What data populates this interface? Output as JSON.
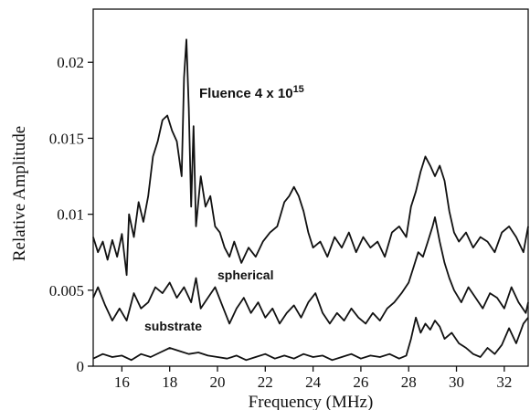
{
  "chart_data": {
    "type": "line",
    "title": "",
    "xlabel": "Frequency (MHz)",
    "ylabel": "Relative Amplitude",
    "xlim": [
      14.8,
      33.0
    ],
    "ylim": [
      0.0,
      0.0235
    ],
    "x_ticks": [
      16,
      18,
      20,
      22,
      24,
      26,
      28,
      30,
      32
    ],
    "x_tick_labels": [
      "16",
      "18",
      "20",
      "22",
      "24",
      "26",
      "28",
      "30",
      "32"
    ],
    "y_ticks": [
      0.0,
      0.005,
      0.01,
      0.015,
      0.02
    ],
    "y_tick_labels": [
      "0",
      "0.005",
      "0.01",
      "0.015",
      "0.02"
    ],
    "grid": false,
    "annotations": {
      "fluence_prefix": "Fluence 4 x 10",
      "fluence_exponent": "15",
      "spherical": "spherical",
      "substrate": "substrate"
    },
    "series": [
      {
        "color": "#111111",
        "x": [
          14.8,
          15.0,
          15.2,
          15.4,
          15.6,
          15.8,
          16.0,
          16.2,
          16.3,
          16.5,
          16.7,
          16.9,
          17.1,
          17.3,
          17.5,
          17.7,
          17.9,
          18.1,
          18.3,
          18.5,
          18.6,
          18.7,
          18.8,
          18.9,
          19.0,
          19.1,
          19.3,
          19.5,
          19.7,
          19.9,
          20.1,
          20.3,
          20.5,
          20.7,
          21.0,
          21.3,
          21.6,
          21.9,
          22.2,
          22.5,
          22.8,
          23.0,
          23.2,
          23.4,
          23.6,
          23.8,
          24.0,
          24.3,
          24.6,
          24.9,
          25.2,
          25.5,
          25.8,
          26.1,
          26.4,
          26.7,
          27.0,
          27.3,
          27.6,
          27.9,
          28.1,
          28.3,
          28.5,
          28.7,
          28.9,
          29.1,
          29.3,
          29.5,
          29.7,
          29.9,
          30.1,
          30.4,
          30.7,
          31.0,
          31.3,
          31.6,
          31.9,
          32.2,
          32.5,
          32.8,
          33.0
        ],
        "values": [
          0.0085,
          0.0075,
          0.0082,
          0.007,
          0.0083,
          0.0072,
          0.0087,
          0.006,
          0.01,
          0.0085,
          0.0108,
          0.0095,
          0.0112,
          0.0138,
          0.0148,
          0.0162,
          0.0165,
          0.0155,
          0.0148,
          0.0125,
          0.019,
          0.0215,
          0.017,
          0.0105,
          0.0158,
          0.0092,
          0.0125,
          0.0105,
          0.0112,
          0.0092,
          0.0088,
          0.0078,
          0.0072,
          0.0082,
          0.0068,
          0.0078,
          0.0072,
          0.0082,
          0.0088,
          0.0092,
          0.0108,
          0.0112,
          0.0118,
          0.0112,
          0.0102,
          0.0088,
          0.0078,
          0.0082,
          0.0072,
          0.0085,
          0.0078,
          0.0088,
          0.0075,
          0.0085,
          0.0078,
          0.0082,
          0.0072,
          0.0088,
          0.0092,
          0.0085,
          0.0105,
          0.0115,
          0.0128,
          0.0138,
          0.0132,
          0.0125,
          0.0132,
          0.0122,
          0.0102,
          0.0088,
          0.0082,
          0.0088,
          0.0078,
          0.0085,
          0.0082,
          0.0075,
          0.0088,
          0.0092,
          0.0085,
          0.0075,
          0.0092
        ]
      },
      {
        "color": "#111111",
        "x": [
          14.8,
          15.0,
          15.3,
          15.6,
          15.9,
          16.2,
          16.5,
          16.8,
          17.1,
          17.4,
          17.7,
          18.0,
          18.3,
          18.6,
          18.9,
          19.1,
          19.3,
          19.6,
          19.9,
          20.2,
          20.5,
          20.8,
          21.1,
          21.4,
          21.7,
          22.0,
          22.3,
          22.6,
          22.9,
          23.2,
          23.5,
          23.8,
          24.1,
          24.4,
          24.7,
          25.0,
          25.3,
          25.6,
          25.9,
          26.2,
          26.5,
          26.8,
          27.1,
          27.4,
          27.7,
          28.0,
          28.2,
          28.4,
          28.6,
          28.8,
          29.0,
          29.1,
          29.3,
          29.5,
          29.7,
          29.9,
          30.2,
          30.5,
          30.8,
          31.1,
          31.4,
          31.7,
          32.0,
          32.3,
          32.6,
          32.9,
          33.0
        ],
        "values": [
          0.0045,
          0.0052,
          0.004,
          0.003,
          0.0038,
          0.003,
          0.0048,
          0.0038,
          0.0042,
          0.0052,
          0.0048,
          0.0055,
          0.0045,
          0.0052,
          0.0042,
          0.0058,
          0.0038,
          0.0045,
          0.0052,
          0.004,
          0.0028,
          0.0038,
          0.0045,
          0.0035,
          0.0042,
          0.0032,
          0.0038,
          0.0028,
          0.0035,
          0.004,
          0.0032,
          0.0042,
          0.0048,
          0.0035,
          0.0028,
          0.0035,
          0.003,
          0.0038,
          0.0032,
          0.0028,
          0.0035,
          0.003,
          0.0038,
          0.0042,
          0.0048,
          0.0055,
          0.0065,
          0.0075,
          0.0072,
          0.0082,
          0.0092,
          0.0098,
          0.0082,
          0.0068,
          0.0058,
          0.005,
          0.0042,
          0.0052,
          0.0045,
          0.0038,
          0.0048,
          0.0045,
          0.0038,
          0.0052,
          0.0042,
          0.0035,
          0.0042
        ]
      },
      {
        "color": "#111111",
        "x": [
          14.8,
          15.2,
          15.6,
          16.0,
          16.4,
          16.8,
          17.2,
          17.6,
          18.0,
          18.4,
          18.8,
          19.2,
          19.6,
          20.0,
          20.4,
          20.8,
          21.2,
          21.6,
          22.0,
          22.4,
          22.8,
          23.2,
          23.6,
          24.0,
          24.4,
          24.8,
          25.2,
          25.6,
          26.0,
          26.4,
          26.8,
          27.2,
          27.6,
          27.9,
          28.1,
          28.3,
          28.5,
          28.7,
          28.9,
          29.1,
          29.3,
          29.5,
          29.8,
          30.1,
          30.4,
          30.7,
          31.0,
          31.3,
          31.6,
          31.9,
          32.2,
          32.5,
          32.8,
          33.0
        ],
        "values": [
          0.0005,
          0.0008,
          0.0006,
          0.0007,
          0.0004,
          0.0008,
          0.0006,
          0.0009,
          0.0012,
          0.001,
          0.0008,
          0.0009,
          0.0007,
          0.0006,
          0.0005,
          0.0007,
          0.0004,
          0.0006,
          0.0008,
          0.0005,
          0.0007,
          0.0005,
          0.0008,
          0.0006,
          0.0007,
          0.0004,
          0.0006,
          0.0008,
          0.0005,
          0.0007,
          0.0006,
          0.0008,
          0.0005,
          0.0007,
          0.0018,
          0.0032,
          0.0022,
          0.0028,
          0.0024,
          0.003,
          0.0026,
          0.0018,
          0.0022,
          0.0015,
          0.0012,
          0.0008,
          0.0006,
          0.0012,
          0.0008,
          0.0014,
          0.0025,
          0.0015,
          0.0028,
          0.0032
        ]
      }
    ]
  }
}
